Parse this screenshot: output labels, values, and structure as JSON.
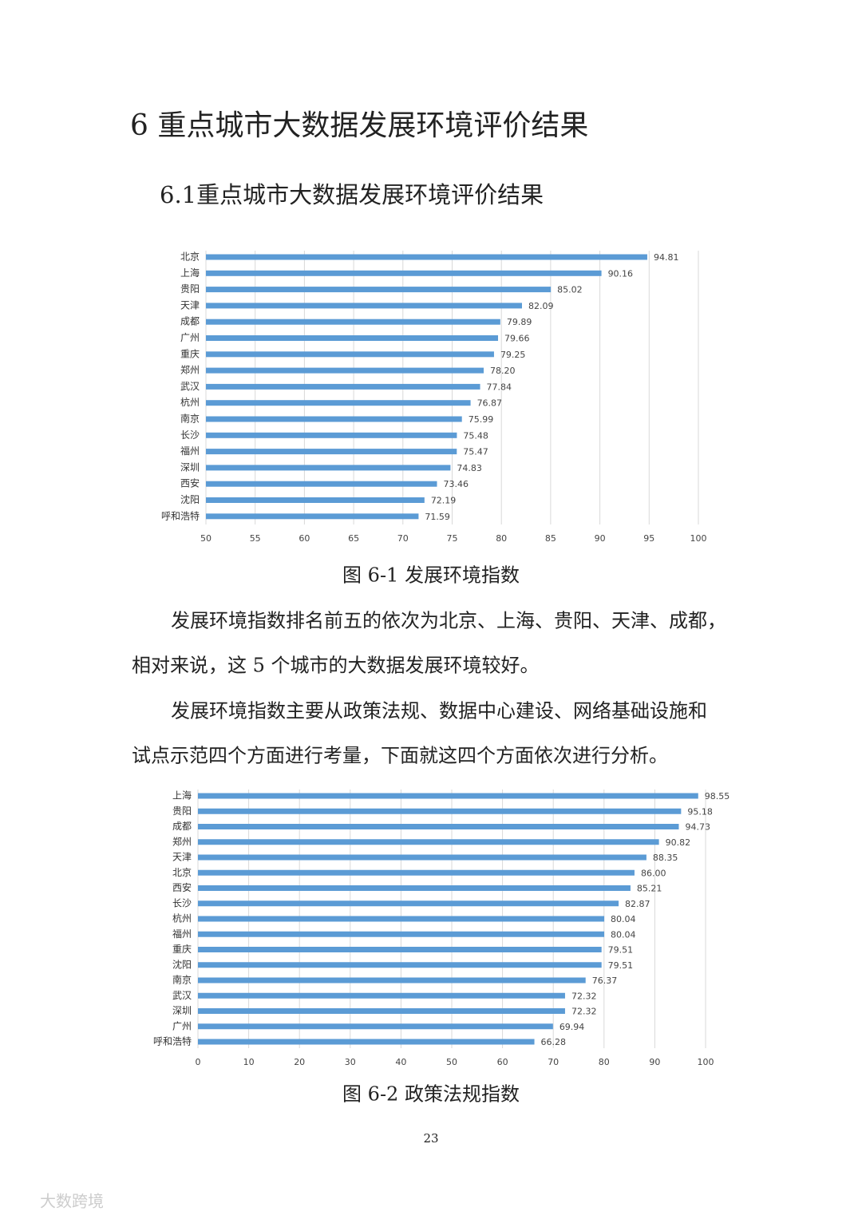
{
  "heading": "6 重点城市大数据发展环境评价结果",
  "subheading": "6.1重点城市大数据发展环境评价结果",
  "paragraphs": [
    [
      "发展环境指数排名前五的依次为北京、上海、贵阳、天津、成都，",
      "相对来说，这 5 个城市的大数据发展环境较好。"
    ],
    [
      "发展环境指数主要从政策法规、数据中心建设、网络基础设施和",
      "试点示范四个方面进行考量，下面就这四个方面依次进行分析。"
    ]
  ],
  "page_number": "23",
  "watermark": "大数跨境",
  "chart_data": [
    {
      "type": "bar",
      "orientation": "horizontal",
      "title": "图 6-1 发展环境指数",
      "color": "#5b9bd5",
      "grid": true,
      "categories": [
        "北京",
        "上海",
        "贵阳",
        "天津",
        "成都",
        "广州",
        "重庆",
        "郑州",
        "武汉",
        "杭州",
        "南京",
        "长沙",
        "福州",
        "深圳",
        "西安",
        "沈阳",
        "呼和浩特"
      ],
      "values": [
        94.81,
        90.16,
        85.02,
        82.09,
        79.89,
        79.66,
        79.25,
        78.2,
        77.84,
        76.87,
        75.99,
        75.48,
        75.47,
        74.83,
        73.46,
        72.19,
        71.59
      ],
      "value_labels": [
        "94.81",
        "90.16",
        "85.02",
        "82.09",
        "79.89",
        "79.66",
        "79.25",
        "78.20",
        "77.84",
        "76.87",
        "75.99",
        "75.48",
        "75.47",
        "74.83",
        "73.46",
        "72.19",
        "71.59"
      ],
      "xlim": [
        50,
        100
      ],
      "xticks": [
        50,
        55,
        60,
        65,
        70,
        75,
        80,
        85,
        90,
        95,
        100
      ]
    },
    {
      "type": "bar",
      "orientation": "horizontal",
      "title": "图 6-2 政策法规指数",
      "color": "#5b9bd5",
      "grid": true,
      "categories": [
        "上海",
        "贵阳",
        "成都",
        "郑州",
        "天津",
        "北京",
        "西安",
        "长沙",
        "杭州",
        "福州",
        "重庆",
        "沈阳",
        "南京",
        "武汉",
        "深圳",
        "广州",
        "呼和浩特"
      ],
      "values": [
        98.55,
        95.18,
        94.73,
        90.82,
        88.35,
        86,
        85.21,
        82.87,
        80.04,
        80.04,
        79.51,
        79.51,
        76.37,
        72.32,
        72.32,
        69.94,
        66.28
      ],
      "value_labels": [
        "98.55",
        "95.18",
        "94.73",
        "90.82",
        "88.35",
        "86.00",
        "85.21",
        "82.87",
        "80.04",
        "80.04",
        "79.51",
        "79.51",
        "76.37",
        "72.32",
        "72.32",
        "69.94",
        "66.28"
      ],
      "xlim": [
        0,
        100
      ],
      "xticks": [
        0,
        10,
        20,
        30,
        40,
        50,
        60,
        70,
        80,
        90,
        100
      ]
    }
  ]
}
